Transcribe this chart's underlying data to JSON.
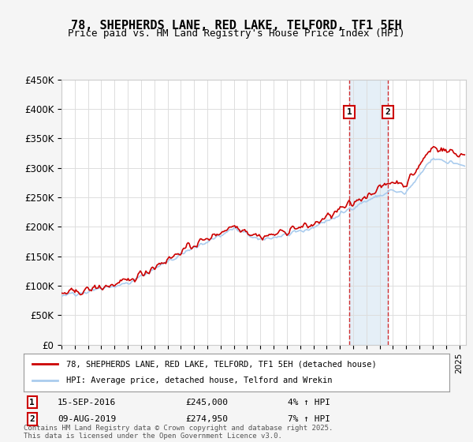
{
  "title": "78, SHEPHERDS LANE, RED LAKE, TELFORD, TF1 5EH",
  "subtitle": "Price paid vs. HM Land Registry's House Price Index (HPI)",
  "ylabel_ticks": [
    "£0",
    "£50K",
    "£100K",
    "£150K",
    "£200K",
    "£250K",
    "£300K",
    "£350K",
    "£400K",
    "£450K"
  ],
  "ylim": [
    0,
    450000
  ],
  "xlim_start": 1995.0,
  "xlim_end": 2025.5,
  "line1_color": "#cc0000",
  "line2_color": "#aaccee",
  "background_color": "#f0f4f8",
  "plot_bg_color": "#ffffff",
  "grid_color": "#dddddd",
  "sale1_date": "15-SEP-2016",
  "sale1_price": "£245,000",
  "sale1_pct": "4% ↑ HPI",
  "sale1_year": 2016.71,
  "sale1_value": 245000,
  "sale2_date": "09-AUG-2019",
  "sale2_price": "£274,950",
  "sale2_pct": "7% ↑ HPI",
  "sale2_year": 2019.61,
  "sale2_value": 274950,
  "legend_line1": "78, SHEPHERDS LANE, RED LAKE, TELFORD, TF1 5EH (detached house)",
  "legend_line2": "HPI: Average price, detached house, Telford and Wrekin",
  "footnote": "Contains HM Land Registry data © Crown copyright and database right 2025.\nThis data is licensed under the Open Government Licence v3.0.",
  "marker_box_color": "#cc0000",
  "shade_color": "#cce0f0"
}
